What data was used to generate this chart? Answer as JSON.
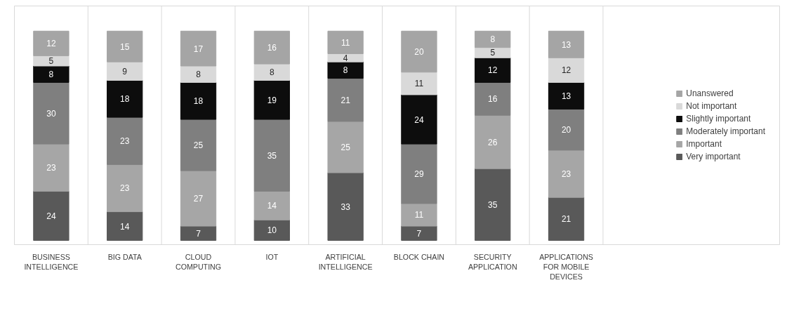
{
  "chart_data": {
    "type": "bar",
    "stacked": true,
    "data_labels": true,
    "grid": "x",
    "legend": "right",
    "categories": [
      "BUSINESS INTELLIGENCE",
      "BIG DATA",
      "CLOUD COMPUTING",
      "IOT",
      "ARTIFICIAL INTELLIGENCE",
      "BLOCK CHAIN",
      "SECURITY APPLICATION",
      "APPLICATIONS FOR MOBILE DEVICES"
    ],
    "series": [
      {
        "name": "Very important",
        "color": "#595959",
        "values": [
          24,
          14,
          7,
          10,
          33,
          7,
          35,
          21
        ]
      },
      {
        "name": "Important",
        "color": "#a6a6a6",
        "values": [
          23,
          23,
          27,
          14,
          25,
          11,
          26,
          23
        ]
      },
      {
        "name": "Moderately important",
        "color": "#7f7f7f",
        "values": [
          30,
          23,
          25,
          35,
          21,
          29,
          16,
          20
        ]
      },
      {
        "name": "Slightly important",
        "color": "#0d0d0d",
        "values": [
          8,
          18,
          18,
          19,
          8,
          24,
          12,
          13
        ]
      },
      {
        "name": "Not important",
        "color": "#d9d9d9",
        "values": [
          5,
          9,
          8,
          8,
          4,
          11,
          5,
          12
        ]
      },
      {
        "name": "Unanswered",
        "color": "#a5a5a5",
        "values": [
          12,
          15,
          17,
          16,
          11,
          20,
          8,
          13
        ]
      }
    ]
  }
}
